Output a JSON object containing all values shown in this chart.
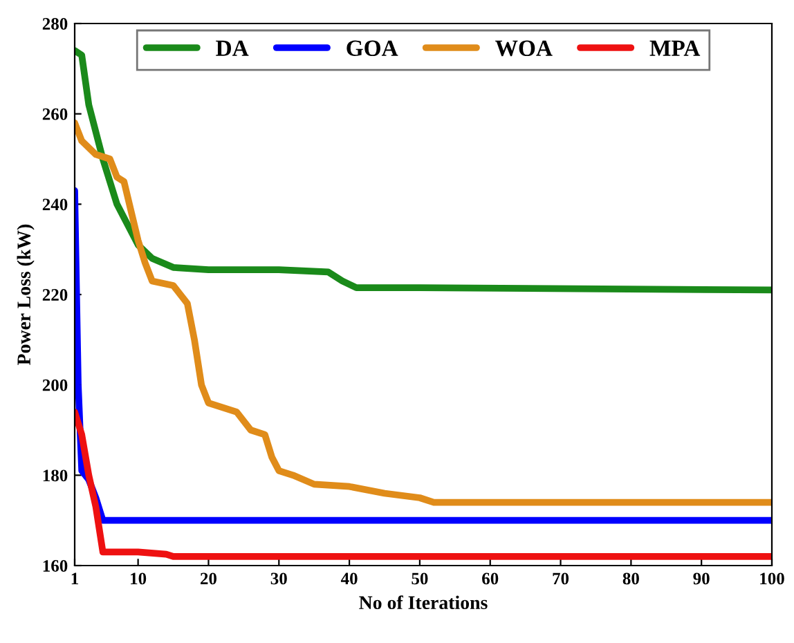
{
  "chart_data": {
    "type": "line",
    "xlabel": "No of Iterations",
    "ylabel": "Power Loss (kW)",
    "xlim": [
      1,
      100
    ],
    "xticks": [
      1,
      10,
      20,
      30,
      40,
      50,
      60,
      70,
      80,
      90,
      100
    ],
    "ylim": [
      160,
      280
    ],
    "yticks": [
      160,
      180,
      200,
      220,
      240,
      260,
      280
    ],
    "grid": false,
    "legend": "top",
    "marker": "none",
    "line_style": "solid",
    "series": [
      {
        "name": "DA",
        "color": "#1a8a1a",
        "x": [
          1,
          2,
          3,
          5,
          7,
          10,
          12,
          15,
          20,
          30,
          37,
          39,
          41,
          50,
          100
        ],
        "values": [
          274,
          273,
          262,
          250,
          240,
          231,
          228,
          226,
          225.5,
          225.5,
          225,
          223,
          221.5,
          221.5,
          221
        ]
      },
      {
        "name": "GOA",
        "color": "#0000ff",
        "x": [
          1,
          1.5,
          2,
          3,
          4,
          5,
          100
        ],
        "values": [
          243,
          200,
          181,
          179,
          175,
          170,
          170
        ]
      },
      {
        "name": "WOA",
        "color": "#e08c1a",
        "x": [
          1,
          2,
          4,
          6,
          7,
          8,
          10,
          11,
          12,
          15,
          17,
          18,
          19,
          20,
          22,
          24,
          26,
          28,
          29,
          30,
          32,
          35,
          40,
          45,
          50,
          52,
          100
        ],
        "values": [
          258,
          254,
          251,
          250,
          246,
          245,
          232,
          227,
          223,
          222,
          218,
          210,
          200,
          196,
          195,
          194,
          190,
          189,
          184,
          181,
          180,
          178,
          177.5,
          176,
          175,
          174,
          174
        ]
      },
      {
        "name": "MPA",
        "color": "#ee1111",
        "x": [
          1,
          2,
          3,
          4,
          5,
          10,
          14,
          15,
          100
        ],
        "values": [
          194,
          189,
          180,
          173,
          163,
          163,
          162.5,
          162,
          162
        ]
      }
    ]
  }
}
